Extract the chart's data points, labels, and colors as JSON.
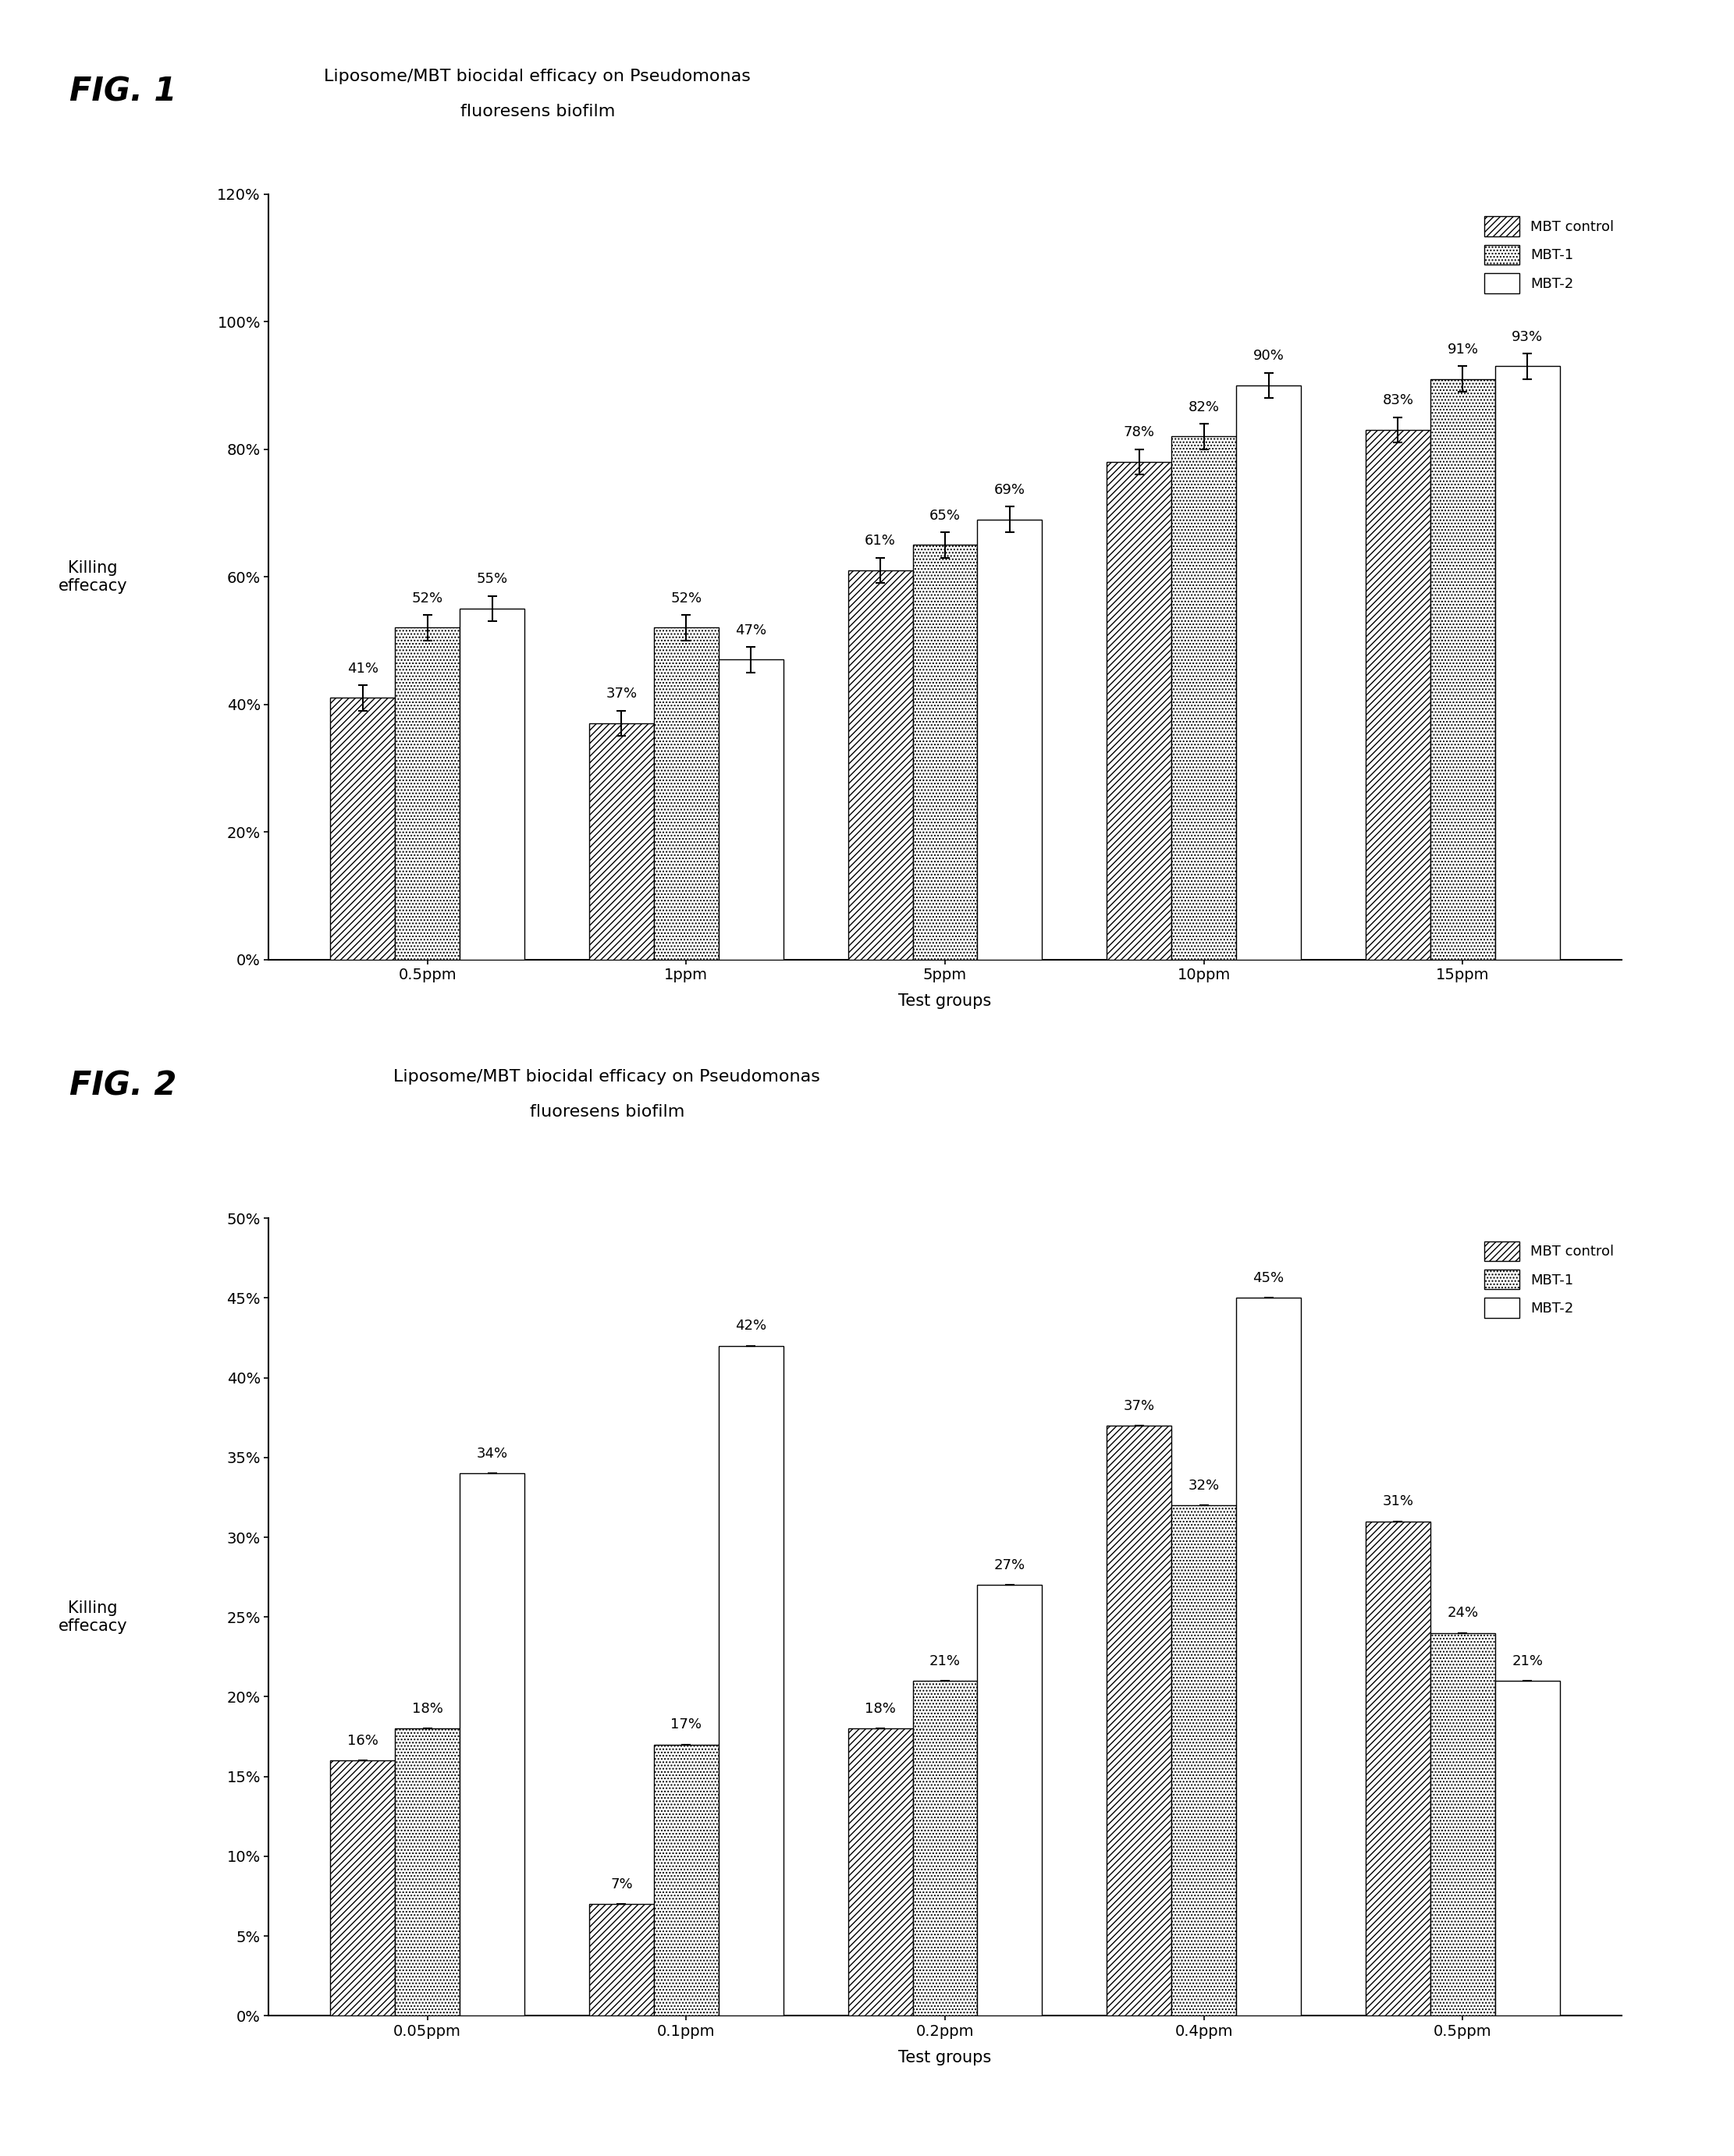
{
  "fig1": {
    "title_line1": "Liposome/MBT biocidal efficacy on Pseudomonas",
    "title_line2": "fluoresens biofilm",
    "fig_label": "FIG. 1",
    "categories": [
      "0.5ppm",
      "1ppm",
      "5ppm",
      "10ppm",
      "15ppm"
    ],
    "mbt_control": [
      41,
      37,
      61,
      78,
      83
    ],
    "mbt1": [
      52,
      52,
      65,
      82,
      91
    ],
    "mbt2": [
      55,
      47,
      69,
      90,
      93
    ],
    "mbt_control_err": [
      2,
      2,
      2,
      2,
      2
    ],
    "mbt1_err": [
      2,
      2,
      2,
      2,
      2
    ],
    "mbt2_err": [
      2,
      2,
      2,
      2,
      2
    ],
    "show_errorbars": true,
    "ylabel1": "Killing",
    "ylabel2": "effecacy",
    "xlabel": "Test groups",
    "ylim": [
      0,
      120
    ],
    "yticks": [
      0,
      20,
      40,
      60,
      80,
      100,
      120
    ],
    "ytick_labels": [
      "0%",
      "20%",
      "40%",
      "60%",
      "80%",
      "100%",
      "120%"
    ],
    "legend_labels": [
      "MBT control",
      "MBT-1",
      "MBT-2"
    ]
  },
  "fig2": {
    "title_line1": "Liposome/MBT biocidal efficacy on Pseudomonas",
    "title_line2": "fluoresens biofilm",
    "fig_label": "FIG. 2",
    "categories": [
      "0.05ppm",
      "0.1ppm",
      "0.2ppm",
      "0.4ppm",
      "0.5ppm"
    ],
    "mbt_control": [
      16,
      7,
      18,
      37,
      31
    ],
    "mbt1": [
      18,
      17,
      21,
      32,
      24
    ],
    "mbt2": [
      34,
      42,
      27,
      45,
      21
    ],
    "mbt_control_err": [
      0,
      0,
      0,
      0,
      0
    ],
    "mbt1_err": [
      0,
      0,
      0,
      0,
      0
    ],
    "mbt2_err": [
      0,
      0,
      0,
      0,
      0
    ],
    "show_errorbars": false,
    "ylabel1": "Killing",
    "ylabel2": "effecacy",
    "xlabel": "Test groups",
    "ylim": [
      0,
      50
    ],
    "yticks": [
      0,
      5,
      10,
      15,
      20,
      25,
      30,
      35,
      40,
      45,
      50
    ],
    "ytick_labels": [
      "0%",
      "5%",
      "10%",
      "15%",
      "20%",
      "25%",
      "30%",
      "35%",
      "40%",
      "45%",
      "50%"
    ],
    "legend_labels": [
      "MBT control",
      "MBT-1",
      "MBT-2"
    ]
  }
}
